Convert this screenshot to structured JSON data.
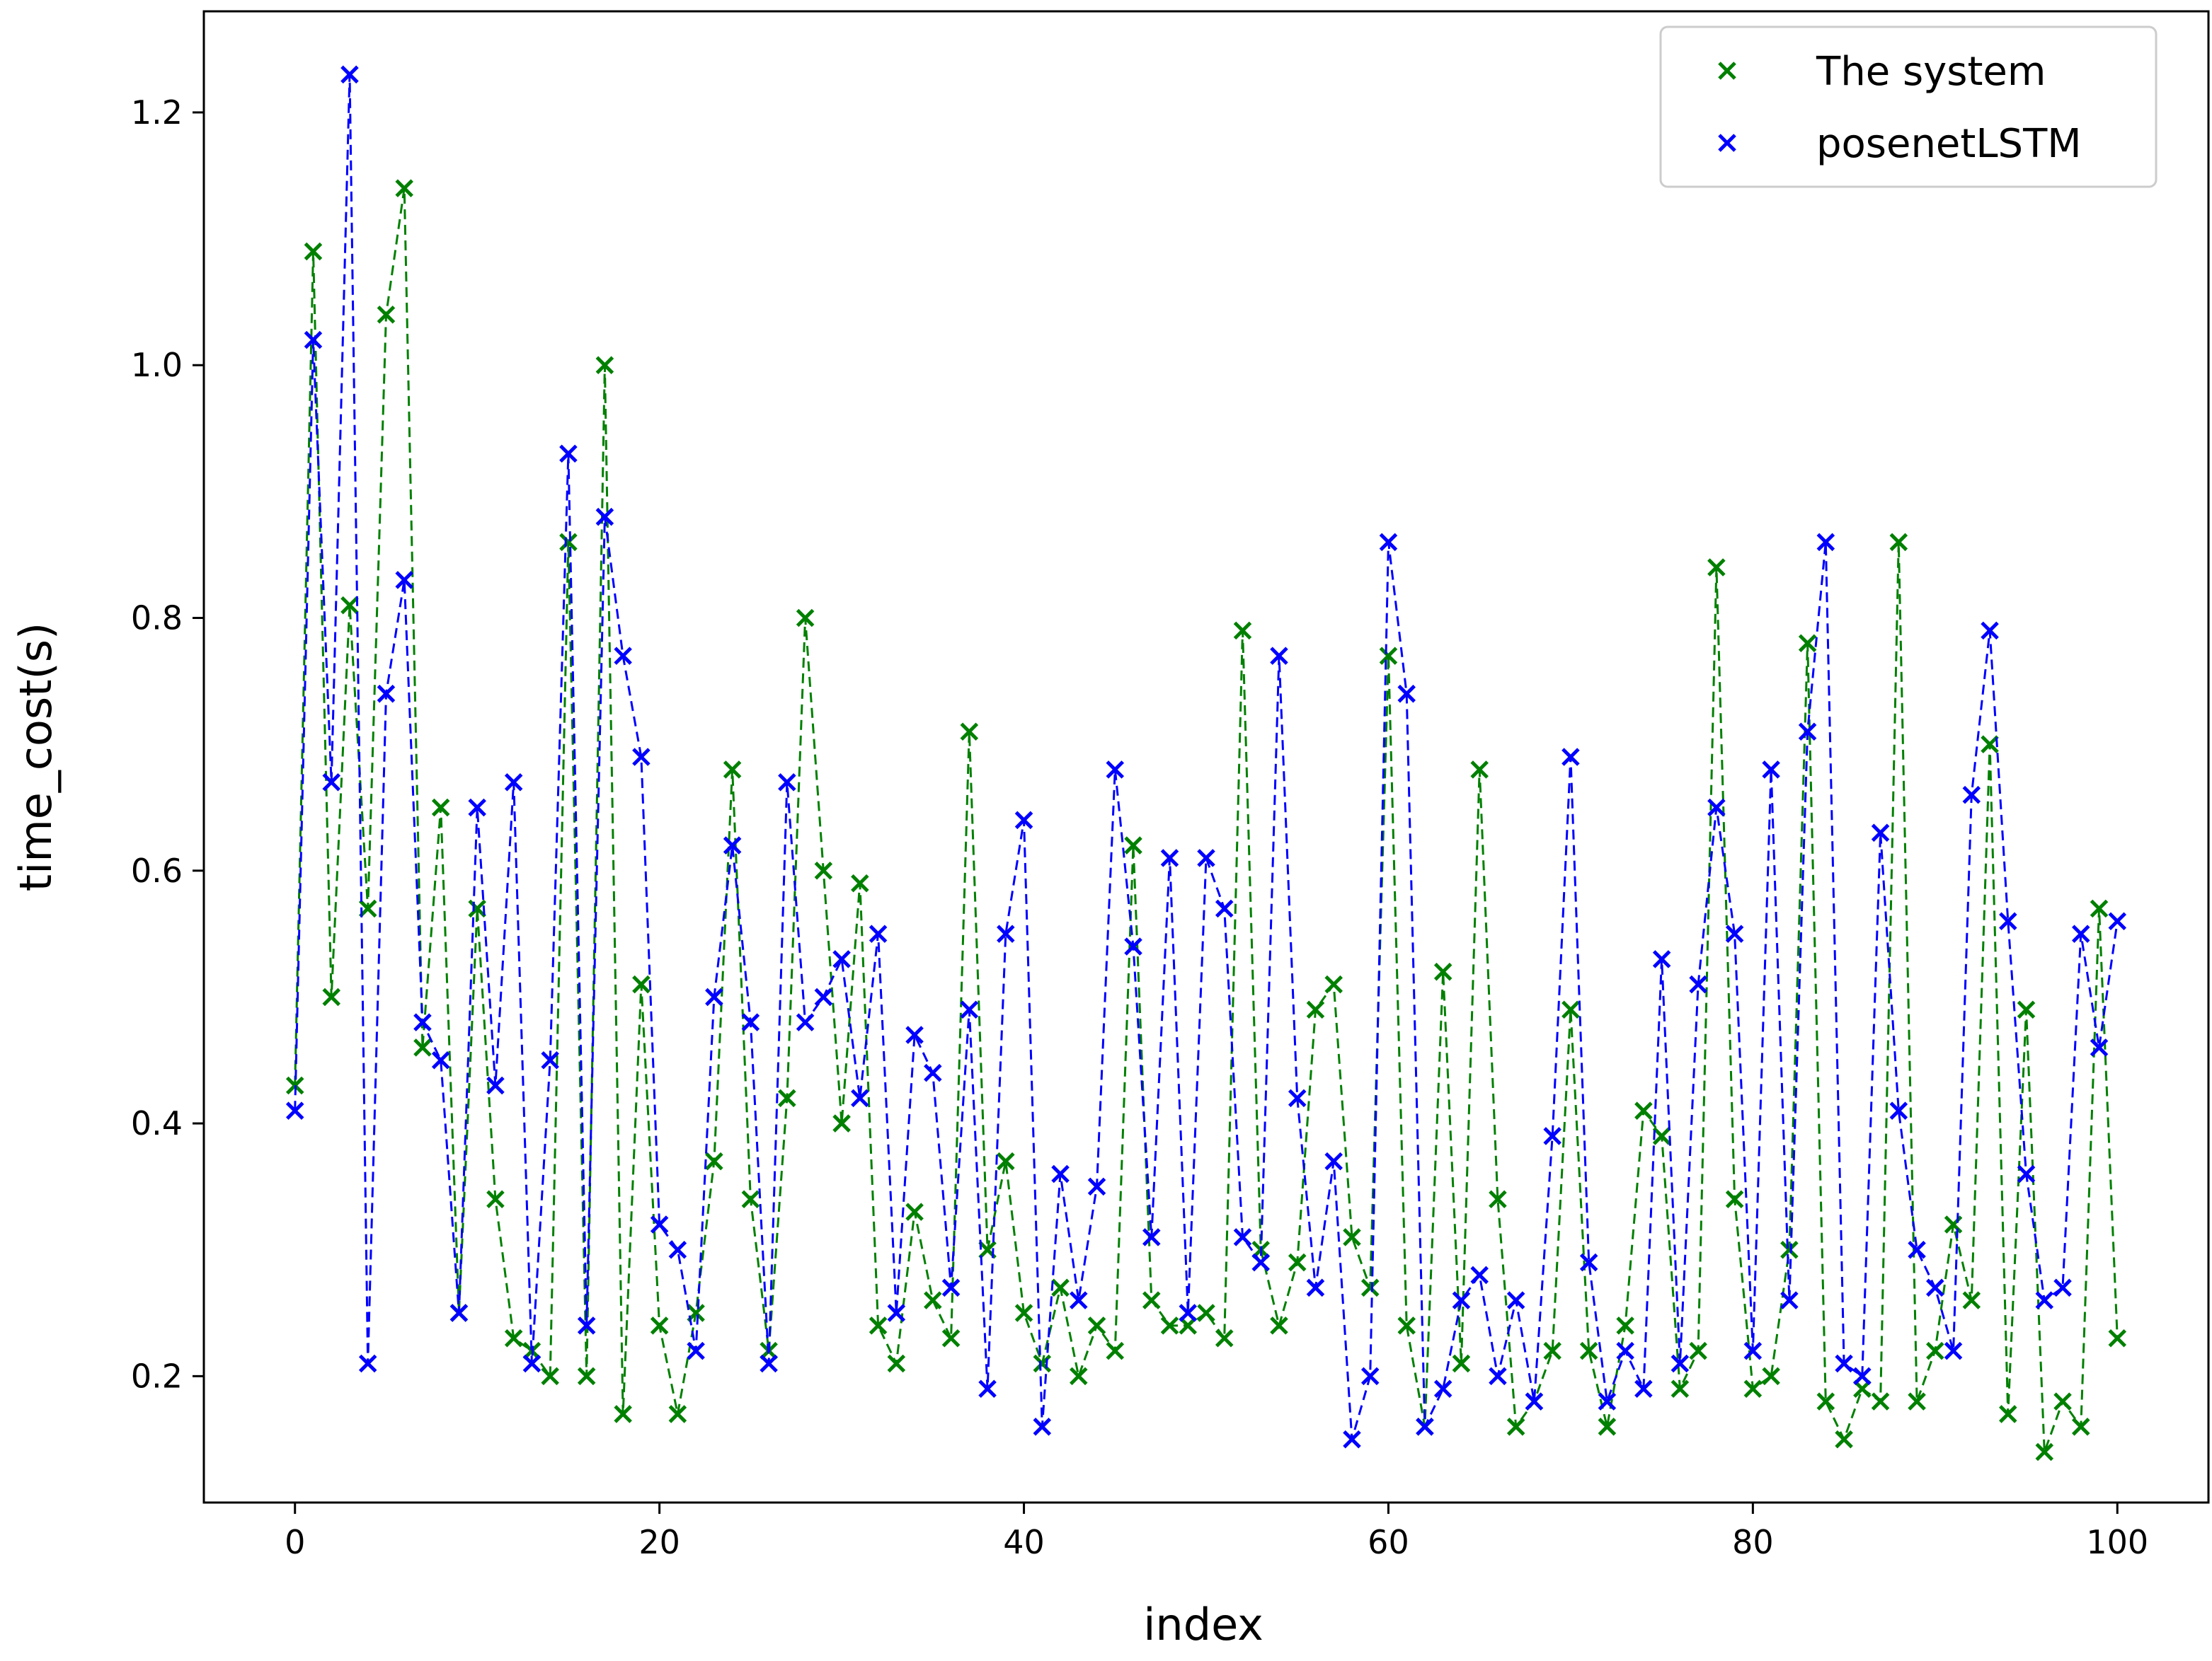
{
  "chart_data": {
    "type": "line",
    "title": "",
    "xlabel": "index",
    "ylabel": "time_cost(s)",
    "xlim": [
      -5,
      105
    ],
    "ylim": [
      0.1,
      1.28
    ],
    "xticks": [
      0,
      20,
      40,
      60,
      80,
      100
    ],
    "xtick_labels": [
      "0",
      "20",
      "40",
      "60",
      "80",
      "100"
    ],
    "yticks": [
      0.2,
      0.4,
      0.6,
      0.8,
      1.0,
      1.2
    ],
    "ytick_labels": [
      "0.2",
      "0.4",
      "0.6",
      "0.8",
      "1.0",
      "1.2"
    ],
    "grid": false,
    "legend_position": "top-right",
    "line_style": "dashed",
    "marker": "x",
    "series": [
      {
        "name": "The system",
        "color": "#008000",
        "x": [
          0,
          1,
          2,
          3,
          4,
          5,
          6,
          7,
          8,
          9,
          10,
          11,
          12,
          13,
          14,
          15,
          16,
          17,
          18,
          19,
          20,
          21,
          22,
          23,
          24,
          25,
          26,
          27,
          28,
          29,
          30,
          31,
          32,
          33,
          34,
          35,
          36,
          37,
          38,
          39,
          40,
          41,
          42,
          43,
          44,
          45,
          46,
          47,
          48,
          49,
          50,
          51,
          52,
          53,
          54,
          55,
          56,
          57,
          58,
          59,
          60,
          61,
          62,
          63,
          64,
          65,
          66,
          67,
          68,
          69,
          70,
          71,
          72,
          73,
          74,
          75,
          76,
          77,
          78,
          79,
          80,
          81,
          82,
          83,
          84,
          85,
          86,
          87,
          88,
          89,
          90,
          91,
          92,
          93,
          94,
          95,
          96,
          97,
          98,
          99,
          100
        ],
        "values": [
          0.43,
          1.09,
          0.5,
          0.81,
          0.57,
          1.04,
          1.14,
          0.46,
          0.65,
          0.25,
          0.57,
          0.34,
          0.23,
          0.22,
          0.2,
          0.86,
          0.2,
          1.0,
          0.17,
          0.51,
          0.24,
          0.17,
          0.25,
          0.37,
          0.68,
          0.34,
          0.22,
          0.42,
          0.8,
          0.6,
          0.4,
          0.59,
          0.24,
          0.21,
          0.33,
          0.26,
          0.23,
          0.71,
          0.3,
          0.37,
          0.25,
          0.21,
          0.27,
          0.2,
          0.24,
          0.22,
          0.62,
          0.26,
          0.24,
          0.24,
          0.25,
          0.23,
          0.79,
          0.3,
          0.24,
          0.29,
          0.49,
          0.51,
          0.31,
          0.27,
          0.77,
          0.24,
          0.16,
          0.52,
          0.21,
          0.68,
          0.34,
          0.16,
          0.18,
          0.22,
          0.49,
          0.22,
          0.16,
          0.24,
          0.41,
          0.39,
          0.19,
          0.22,
          0.84,
          0.34,
          0.19,
          0.2,
          0.3,
          0.78,
          0.18,
          0.15,
          0.19,
          0.18,
          0.86,
          0.18,
          0.22,
          0.32,
          0.26,
          0.7,
          0.17,
          0.49,
          0.14,
          0.18,
          0.16,
          0.57,
          0.23
        ]
      },
      {
        "name": "posenetLSTM",
        "color": "#0000ff",
        "x": [
          0,
          1,
          2,
          3,
          4,
          5,
          6,
          7,
          8,
          9,
          10,
          11,
          12,
          13,
          14,
          15,
          16,
          17,
          18,
          19,
          20,
          21,
          22,
          23,
          24,
          25,
          26,
          27,
          28,
          29,
          30,
          31,
          32,
          33,
          34,
          35,
          36,
          37,
          38,
          39,
          40,
          41,
          42,
          43,
          44,
          45,
          46,
          47,
          48,
          49,
          50,
          51,
          52,
          53,
          54,
          55,
          56,
          57,
          58,
          59,
          60,
          61,
          62,
          63,
          64,
          65,
          66,
          67,
          68,
          69,
          70,
          71,
          72,
          73,
          74,
          75,
          76,
          77,
          78,
          79,
          80,
          81,
          82,
          83,
          84,
          85,
          86,
          87,
          88,
          89,
          90,
          91,
          92,
          93,
          94,
          95,
          96,
          97,
          98,
          99,
          100
        ],
        "values": [
          0.41,
          1.02,
          0.67,
          1.23,
          0.21,
          0.74,
          0.83,
          0.48,
          0.45,
          0.25,
          0.65,
          0.43,
          0.67,
          0.21,
          0.45,
          0.93,
          0.24,
          0.88,
          0.77,
          0.69,
          0.32,
          0.3,
          0.22,
          0.5,
          0.62,
          0.48,
          0.21,
          0.67,
          0.48,
          0.5,
          0.53,
          0.42,
          0.55,
          0.25,
          0.47,
          0.44,
          0.27,
          0.49,
          0.19,
          0.55,
          0.64,
          0.16,
          0.36,
          0.26,
          0.35,
          0.68,
          0.54,
          0.31,
          0.61,
          0.25,
          0.61,
          0.57,
          0.31,
          0.29,
          0.77,
          0.42,
          0.27,
          0.37,
          0.15,
          0.2,
          0.86,
          0.74,
          0.16,
          0.19,
          0.26,
          0.28,
          0.2,
          0.26,
          0.18,
          0.39,
          0.69,
          0.29,
          0.18,
          0.22,
          0.19,
          0.53,
          0.21,
          0.51,
          0.65,
          0.55,
          0.22,
          0.68,
          0.26,
          0.71,
          0.86,
          0.21,
          0.2,
          0.63,
          0.41,
          0.3,
          0.27,
          0.22,
          0.66,
          0.79,
          0.56,
          0.36,
          0.26,
          0.27,
          0.55,
          0.46,
          0.56
        ]
      }
    ]
  }
}
